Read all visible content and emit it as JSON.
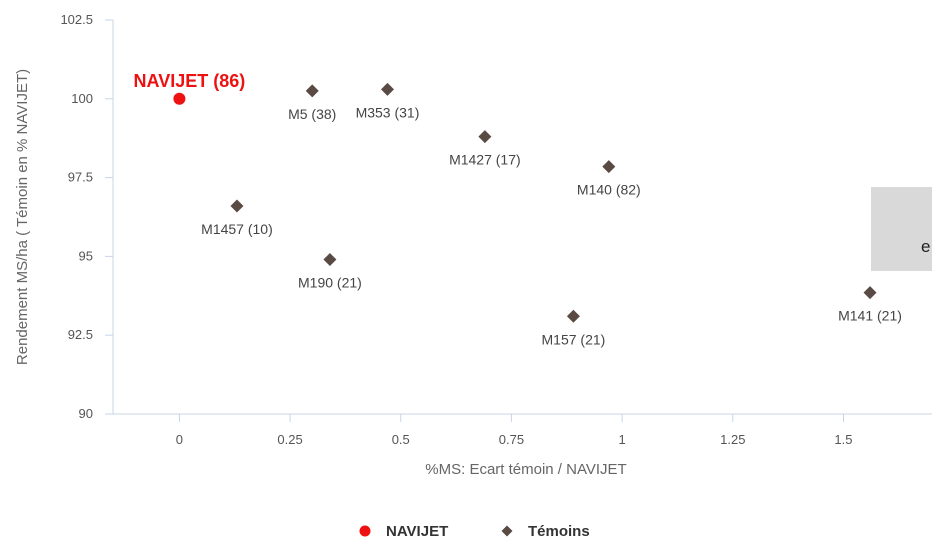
{
  "chart_data": {
    "type": "scatter",
    "title": "",
    "xlabel": "%MS: Ecart témoin / NAVIJET",
    "ylabel": "Rendement MS/ha ( Témoin en % NAVIJET)",
    "xlim": [
      -0.15,
      1.7
    ],
    "ylim": [
      90,
      102.5
    ],
    "x_ticks": [
      0,
      0.25,
      0.5,
      0.75,
      1,
      1.25,
      1.5
    ],
    "x_tick_labels": [
      "0",
      "0.25",
      "0.5",
      "0.75",
      "1",
      "1.25",
      "1.5"
    ],
    "y_ticks": [
      90,
      92.5,
      95,
      97.5,
      100,
      102.5
    ],
    "y_tick_labels": [
      "90",
      "92.5",
      "95",
      "97.5",
      "100",
      "102.5"
    ],
    "grid": false,
    "legend_position": "bottom-center",
    "series": [
      {
        "name": "NAVIJET",
        "marker": "circle",
        "color": "#ee1111",
        "points": [
          {
            "x": 0,
            "y": 100,
            "label": "NAVIJET (86)"
          }
        ]
      },
      {
        "name": "Témoins",
        "marker": "diamond",
        "color": "#5a4a44",
        "points": [
          {
            "x": 0.3,
            "y": 100.25,
            "label": "M5 (38)"
          },
          {
            "x": 0.47,
            "y": 100.3,
            "label": "M353 (31)"
          },
          {
            "x": 0.69,
            "y": 98.8,
            "label": "M1427 (17)"
          },
          {
            "x": 0.97,
            "y": 97.85,
            "label": "M140 (82)"
          },
          {
            "x": 0.13,
            "y": 96.6,
            "label": "M1457 (10)"
          },
          {
            "x": 0.34,
            "y": 94.9,
            "label": "M190 (21)"
          },
          {
            "x": 0.89,
            "y": 93.1,
            "label": "M157 (21)"
          },
          {
            "x": 1.56,
            "y": 93.85,
            "label": "M141 (21)"
          }
        ]
      }
    ]
  },
  "tooltip": {
    "text": "e"
  }
}
